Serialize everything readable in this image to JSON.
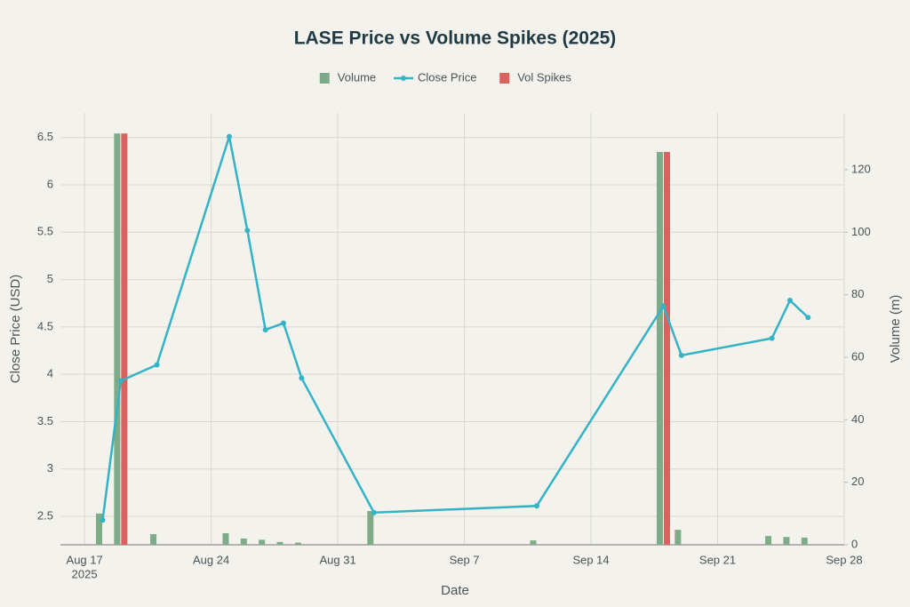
{
  "chart_data": {
    "type": "bar-line",
    "title": "LASE Price vs Volume Spikes (2025)",
    "x_label": "Date",
    "y_label": "Close Price (USD)",
    "y2_label": "Volume (m)",
    "x": [
      "2025-08-18",
      "2025-08-19",
      "2025-08-21",
      "2025-08-25",
      "2025-08-26",
      "2025-08-27",
      "2025-08-28",
      "2025-08-29",
      "2025-09-02",
      "2025-09-11",
      "2025-09-18",
      "2025-09-19",
      "2025-09-24",
      "2025-09-25",
      "2025-09-26"
    ],
    "series": [
      {
        "name": "Volume",
        "type": "bar",
        "axis": "y2",
        "color": "#7eab88",
        "values": [
          10,
          131.6,
          3.4,
          3.7,
          2,
          1.6,
          0.9,
          0.7,
          10.8,
          1.4,
          125.7,
          4.8,
          2.8,
          2.5,
          2.3
        ]
      },
      {
        "name": "Close Price",
        "type": "line",
        "color": "#35b3c6",
        "values": [
          2.46,
          3.93,
          4.1,
          6.51,
          5.52,
          4.47,
          4.54,
          3.96,
          2.54,
          2.61,
          4.72,
          4.2,
          4.38,
          4.78,
          4.6
        ]
      },
      {
        "name": "Vol Spikes",
        "type": "bar",
        "axis": "y2",
        "color": "#d9625f",
        "values": [
          null,
          131.6,
          null,
          null,
          null,
          null,
          null,
          null,
          null,
          null,
          125.7,
          null,
          null,
          null,
          null
        ]
      }
    ],
    "xlim": [
      "2025-08-15T16:00",
      "2025-09-28T00:00"
    ],
    "xticks": [
      {
        "value": "2025-08-17",
        "label": "Aug 17"
      },
      {
        "value": "2025-08-24",
        "label": "Aug 24"
      },
      {
        "value": "2025-08-31",
        "label": "Aug 31"
      },
      {
        "value": "2025-09-07",
        "label": "Sep 7"
      },
      {
        "value": "2025-09-14",
        "label": "Sep 14"
      },
      {
        "value": "2025-09-21",
        "label": "Sep 21"
      },
      {
        "value": "2025-09-28",
        "label": "Sep 28"
      }
    ],
    "xtick_year": "2025",
    "ylim": [
      2.2,
      6.76
    ],
    "yticks": [
      2.5,
      3,
      3.5,
      4,
      4.5,
      5,
      5.5,
      6,
      6.5
    ],
    "y2lim": [
      0,
      138.2
    ],
    "y2ticks": [
      0,
      20,
      40,
      60,
      80,
      100,
      120
    ],
    "grid": true,
    "legend": "top"
  }
}
